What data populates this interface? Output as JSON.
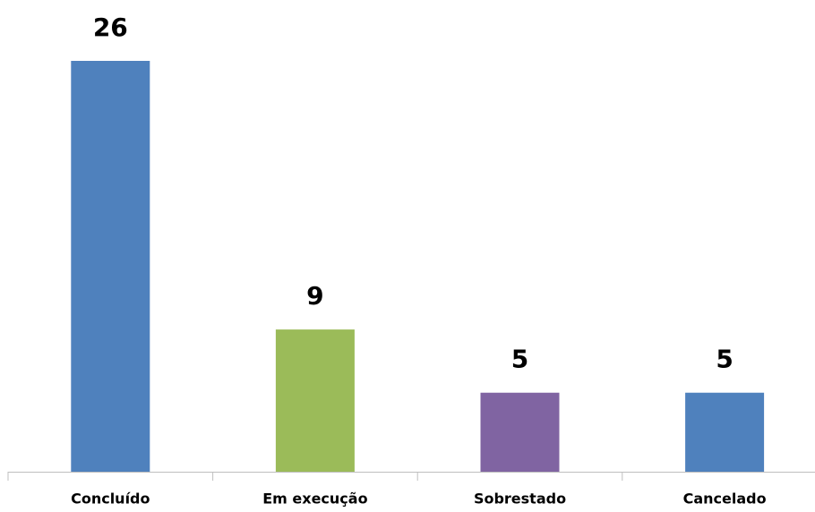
{
  "chart_data": {
    "type": "bar",
    "categories": [
      "Concluído",
      "Em execução",
      "Sobrestado",
      "Cancelado"
    ],
    "values": [
      26,
      9,
      5,
      5
    ],
    "colors": [
      "#4f81bd",
      "#9bbb59",
      "#8064a2",
      "#4f81bd"
    ]
  }
}
